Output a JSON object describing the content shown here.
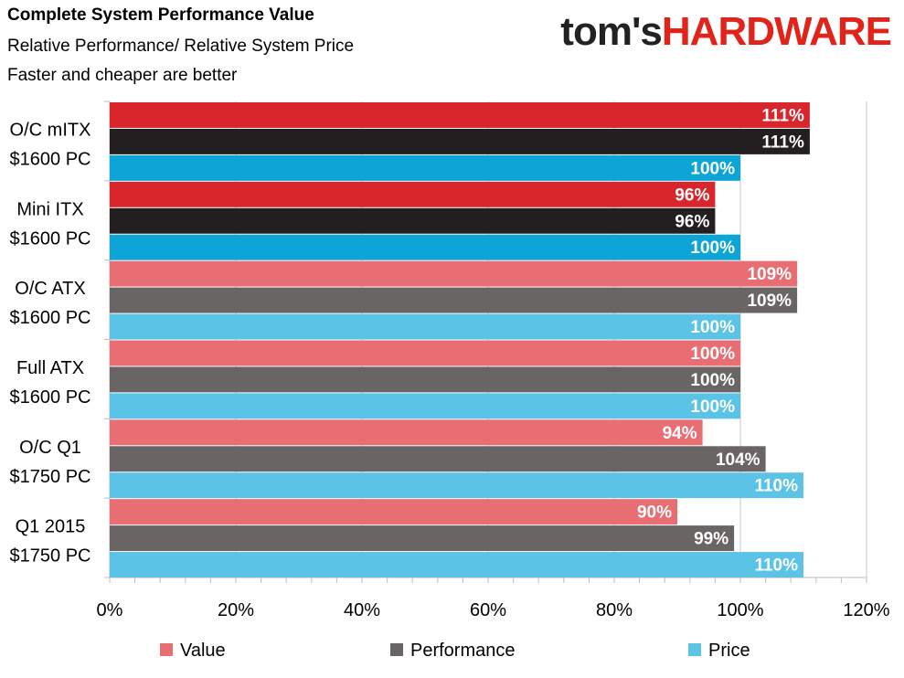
{
  "header": {
    "title": "Complete System Performance Value",
    "subtitle1": "Relative Performance/ Relative System Price",
    "subtitle2": "Faster and cheaper are better"
  },
  "brand": {
    "part1": "tom's",
    "part2": "HARDWARE"
  },
  "chart_data": {
    "type": "bar",
    "orientation": "horizontal",
    "title": "Complete System Performance Value",
    "categories": [
      [
        "O/C mITX",
        "$1600 PC"
      ],
      [
        "Mini ITX",
        "$1600 PC"
      ],
      [
        "O/C ATX",
        "$1600 PC"
      ],
      [
        "Full ATX",
        "$1600 PC"
      ],
      [
        "O/C Q1",
        "$1750 PC"
      ],
      [
        "Q1 2015",
        "$1750 PC"
      ]
    ],
    "series": [
      {
        "name": "Value",
        "values": [
          111,
          96,
          109,
          100,
          94,
          90
        ]
      },
      {
        "name": "Performance",
        "values": [
          111,
          96,
          109,
          100,
          104,
          99
        ]
      },
      {
        "name": "Price",
        "values": [
          100,
          100,
          100,
          100,
          110,
          110
        ]
      }
    ],
    "value_labels": [
      [
        "111%",
        "111%",
        "100%"
      ],
      [
        "96%",
        "96%",
        "100%"
      ],
      [
        "109%",
        "109%",
        "100%"
      ],
      [
        "100%",
        "100%",
        "100%"
      ],
      [
        "94%",
        "104%",
        "110%"
      ],
      [
        "90%",
        "99%",
        "110%"
      ]
    ],
    "xlim": [
      0,
      120
    ],
    "xticks": [
      "0%",
      "20%",
      "40%",
      "60%",
      "80%",
      "100%",
      "120%"
    ],
    "grid": true,
    "legend": "bottom",
    "highlighted_groups": 2,
    "colors": {
      "highlight": [
        "#d9262c",
        "#231f20",
        "#0da5d5"
      ],
      "normal": [
        "#e86e73",
        "#6a6565",
        "#5bc4e6"
      ],
      "grid": "#c8c8c8",
      "axis": "#bdbdbd",
      "label_text": "#ffffff"
    }
  }
}
